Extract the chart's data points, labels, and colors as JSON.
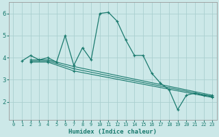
{
  "background_color": "#cce8e8",
  "grid_color": "#aacfcf",
  "line_color": "#1a7a6e",
  "xlabel": "Humidex (Indice chaleur)",
  "xlim": [
    -0.5,
    23.5
  ],
  "ylim": [
    1.2,
    6.5
  ],
  "yticks": [
    2,
    3,
    4,
    5,
    6
  ],
  "xticks": [
    0,
    1,
    2,
    3,
    4,
    5,
    6,
    7,
    8,
    9,
    10,
    11,
    12,
    13,
    14,
    15,
    16,
    17,
    18,
    19,
    20,
    21,
    22,
    23
  ],
  "lines": [
    {
      "x": [
        1,
        2,
        3,
        4,
        5,
        6,
        7,
        8,
        9,
        10,
        11,
        12,
        13,
        14,
        15,
        16,
        17,
        18,
        19,
        20,
        21,
        22,
        23
      ],
      "y": [
        3.85,
        4.1,
        3.9,
        4.0,
        3.8,
        5.0,
        3.65,
        4.45,
        3.9,
        6.0,
        6.05,
        5.65,
        4.8,
        4.1,
        4.1,
        3.3,
        2.85,
        2.55,
        1.65,
        2.3,
        2.4,
        2.3,
        2.25
      ]
    },
    {
      "x": [
        2,
        4,
        7,
        23
      ],
      "y": [
        3.9,
        3.9,
        3.6,
        2.3
      ]
    },
    {
      "x": [
        2,
        4,
        7,
        23
      ],
      "y": [
        3.85,
        3.85,
        3.5,
        2.25
      ]
    },
    {
      "x": [
        2,
        4,
        7,
        23
      ],
      "y": [
        3.8,
        3.8,
        3.4,
        2.2
      ]
    }
  ]
}
